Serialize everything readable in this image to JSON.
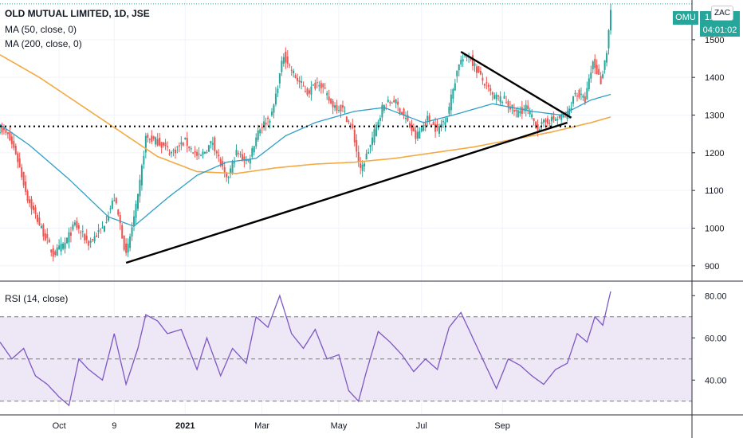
{
  "chart_data": [
    {
      "type": "candlestick",
      "title": "OLD MUTUAL LIMITED, 1D, JSE",
      "indicators": [
        "MA (50, close, 0)",
        "MA (200, close, 0)"
      ],
      "ylim": [
        870,
        1580
      ],
      "y_ticks": [
        "900",
        "1000",
        "1100",
        "1200",
        "1300",
        "1400",
        "1500"
      ],
      "x_ticks": [
        "Oct",
        "9",
        "2021",
        "Mar",
        "May",
        "Jul",
        "Sep"
      ],
      "current_price_label": "1...",
      "price_badge": "OMU",
      "timer_badge": "04:01:02",
      "symbol_badge": "ZAC",
      "price_path_anchors": [
        {
          "i": 0,
          "p": 1265
        },
        {
          "i": 4,
          "p": 1245
        },
        {
          "i": 8,
          "p": 1200
        },
        {
          "i": 14,
          "p": 1080
        },
        {
          "i": 20,
          "p": 1010
        },
        {
          "i": 27,
          "p": 930
        },
        {
          "i": 33,
          "p": 960
        },
        {
          "i": 38,
          "p": 1010
        },
        {
          "i": 45,
          "p": 960
        },
        {
          "i": 52,
          "p": 1000
        },
        {
          "i": 58,
          "p": 1080
        },
        {
          "i": 61,
          "p": 1010
        },
        {
          "i": 64,
          "p": 925
        },
        {
          "i": 70,
          "p": 1080
        },
        {
          "i": 74,
          "p": 1240
        },
        {
          "i": 80,
          "p": 1230
        },
        {
          "i": 87,
          "p": 1200
        },
        {
          "i": 94,
          "p": 1230
        },
        {
          "i": 101,
          "p": 1185
        },
        {
          "i": 108,
          "p": 1230
        },
        {
          "i": 115,
          "p": 1125
        },
        {
          "i": 120,
          "p": 1200
        },
        {
          "i": 126,
          "p": 1175
        },
        {
          "i": 131,
          "p": 1260
        },
        {
          "i": 138,
          "p": 1300
        },
        {
          "i": 144,
          "p": 1460
        },
        {
          "i": 150,
          "p": 1400
        },
        {
          "i": 156,
          "p": 1360
        },
        {
          "i": 162,
          "p": 1390
        },
        {
          "i": 168,
          "p": 1330
        },
        {
          "i": 174,
          "p": 1315
        },
        {
          "i": 179,
          "p": 1260
        },
        {
          "i": 183,
          "p": 1150
        },
        {
          "i": 188,
          "p": 1220
        },
        {
          "i": 194,
          "p": 1320
        },
        {
          "i": 200,
          "p": 1340
        },
        {
          "i": 206,
          "p": 1290
        },
        {
          "i": 211,
          "p": 1240
        },
        {
          "i": 217,
          "p": 1290
        },
        {
          "i": 222,
          "p": 1260
        },
        {
          "i": 227,
          "p": 1300
        },
        {
          "i": 233,
          "p": 1440
        },
        {
          "i": 238,
          "p": 1460
        },
        {
          "i": 244,
          "p": 1400
        },
        {
          "i": 250,
          "p": 1350
        },
        {
          "i": 256,
          "p": 1340
        },
        {
          "i": 262,
          "p": 1305
        },
        {
          "i": 267,
          "p": 1320
        },
        {
          "i": 273,
          "p": 1265
        },
        {
          "i": 278,
          "p": 1285
        },
        {
          "i": 283,
          "p": 1290
        },
        {
          "i": 288,
          "p": 1300
        },
        {
          "i": 292,
          "p": 1360
        },
        {
          "i": 297,
          "p": 1340
        },
        {
          "i": 301,
          "p": 1440
        },
        {
          "i": 305,
          "p": 1390
        },
        {
          "i": 308,
          "p": 1470
        },
        {
          "i": 310,
          "p": 1580
        }
      ],
      "ma50_anchors": [
        {
          "i": 0,
          "p": 1275
        },
        {
          "i": 15,
          "p": 1220
        },
        {
          "i": 35,
          "p": 1130
        },
        {
          "i": 55,
          "p": 1030
        },
        {
          "i": 68,
          "p": 1005
        },
        {
          "i": 85,
          "p": 1080
        },
        {
          "i": 100,
          "p": 1140
        },
        {
          "i": 115,
          "p": 1175
        },
        {
          "i": 130,
          "p": 1185
        },
        {
          "i": 145,
          "p": 1245
        },
        {
          "i": 160,
          "p": 1280
        },
        {
          "i": 180,
          "p": 1310
        },
        {
          "i": 195,
          "p": 1320
        },
        {
          "i": 215,
          "p": 1280
        },
        {
          "i": 230,
          "p": 1300
        },
        {
          "i": 250,
          "p": 1330
        },
        {
          "i": 270,
          "p": 1310
        },
        {
          "i": 285,
          "p": 1300
        },
        {
          "i": 300,
          "p": 1340
        },
        {
          "i": 310,
          "p": 1355
        }
      ],
      "ma200_anchors": [
        {
          "i": 0,
          "p": 1460
        },
        {
          "i": 20,
          "p": 1400
        },
        {
          "i": 40,
          "p": 1330
        },
        {
          "i": 60,
          "p": 1260
        },
        {
          "i": 80,
          "p": 1190
        },
        {
          "i": 100,
          "p": 1150
        },
        {
          "i": 120,
          "p": 1145
        },
        {
          "i": 140,
          "p": 1160
        },
        {
          "i": 160,
          "p": 1170
        },
        {
          "i": 180,
          "p": 1175
        },
        {
          "i": 200,
          "p": 1185
        },
        {
          "i": 220,
          "p": 1200
        },
        {
          "i": 240,
          "p": 1215
        },
        {
          "i": 260,
          "p": 1235
        },
        {
          "i": 280,
          "p": 1255
        },
        {
          "i": 300,
          "p": 1280
        },
        {
          "i": 310,
          "p": 1295
        }
      ],
      "support_level": 1270,
      "trendlines": [
        {
          "from": {
            "i": 64,
            "p": 908
          },
          "to": {
            "i": 288,
            "p": 1280
          }
        },
        {
          "from": {
            "i": 234,
            "p": 1468
          },
          "to": {
            "i": 290,
            "p": 1293
          }
        }
      ],
      "colors": {
        "up": "#26a69a",
        "down": "#ef5350",
        "ma50": "#2e9fc7",
        "ma200": "#f4a942",
        "price_line": "#26a69a",
        "badge": "#26a69a"
      }
    },
    {
      "type": "line",
      "title": "RSI (14, close)",
      "ylim": [
        25,
        85
      ],
      "y_ticks": [
        "40.00",
        "60.00",
        "80.00"
      ],
      "bands": [
        30,
        50,
        70
      ],
      "rsi_anchors": [
        {
          "i": 0,
          "v": 58
        },
        {
          "i": 6,
          "v": 50
        },
        {
          "i": 12,
          "v": 55
        },
        {
          "i": 18,
          "v": 42
        },
        {
          "i": 24,
          "v": 38
        },
        {
          "i": 30,
          "v": 32
        },
        {
          "i": 35,
          "v": 28
        },
        {
          "i": 40,
          "v": 50
        },
        {
          "i": 45,
          "v": 45
        },
        {
          "i": 52,
          "v": 40
        },
        {
          "i": 58,
          "v": 62
        },
        {
          "i": 64,
          "v": 38
        },
        {
          "i": 70,
          "v": 55
        },
        {
          "i": 74,
          "v": 71
        },
        {
          "i": 80,
          "v": 68
        },
        {
          "i": 85,
          "v": 62
        },
        {
          "i": 92,
          "v": 64
        },
        {
          "i": 100,
          "v": 45
        },
        {
          "i": 105,
          "v": 60
        },
        {
          "i": 112,
          "v": 42
        },
        {
          "i": 118,
          "v": 55
        },
        {
          "i": 125,
          "v": 48
        },
        {
          "i": 130,
          "v": 70
        },
        {
          "i": 136,
          "v": 65
        },
        {
          "i": 142,
          "v": 80
        },
        {
          "i": 148,
          "v": 62
        },
        {
          "i": 154,
          "v": 55
        },
        {
          "i": 160,
          "v": 64
        },
        {
          "i": 166,
          "v": 50
        },
        {
          "i": 172,
          "v": 52
        },
        {
          "i": 177,
          "v": 35
        },
        {
          "i": 182,
          "v": 30
        },
        {
          "i": 186,
          "v": 44
        },
        {
          "i": 192,
          "v": 63
        },
        {
          "i": 198,
          "v": 58
        },
        {
          "i": 204,
          "v": 52
        },
        {
          "i": 210,
          "v": 44
        },
        {
          "i": 216,
          "v": 50
        },
        {
          "i": 222,
          "v": 45
        },
        {
          "i": 228,
          "v": 65
        },
        {
          "i": 234,
          "v": 72
        },
        {
          "i": 240,
          "v": 60
        },
        {
          "i": 246,
          "v": 48
        },
        {
          "i": 252,
          "v": 36
        },
        {
          "i": 258,
          "v": 50
        },
        {
          "i": 264,
          "v": 47
        },
        {
          "i": 270,
          "v": 42
        },
        {
          "i": 276,
          "v": 38
        },
        {
          "i": 282,
          "v": 45
        },
        {
          "i": 288,
          "v": 48
        },
        {
          "i": 293,
          "v": 62
        },
        {
          "i": 298,
          "v": 58
        },
        {
          "i": 302,
          "v": 70
        },
        {
          "i": 306,
          "v": 66
        },
        {
          "i": 310,
          "v": 82
        }
      ],
      "colors": {
        "line": "#7e57c2",
        "fill": "#ede7f6",
        "band": "#7b7b7b"
      }
    }
  ],
  "x_label_positions_index": [
    30,
    58,
    94,
    133,
    172,
    214,
    255
  ]
}
